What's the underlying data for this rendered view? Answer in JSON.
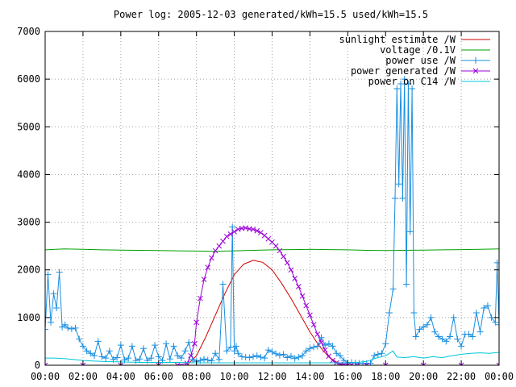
{
  "chart_data": {
    "type": "line",
    "title": "Power log: 2005-12-03 generated/kWh=15.5 used/kWh=15.5",
    "xlabel": "",
    "ylabel": "",
    "xlim": [
      0,
      24
    ],
    "ylim": [
      0,
      7000
    ],
    "x_ticks": [
      {
        "value": 0,
        "label": "00:00"
      },
      {
        "value": 2,
        "label": "02:00"
      },
      {
        "value": 4,
        "label": "04:00"
      },
      {
        "value": 6,
        "label": "06:00"
      },
      {
        "value": 8,
        "label": "08:00"
      },
      {
        "value": 10,
        "label": "10:00"
      },
      {
        "value": 12,
        "label": "12:00"
      },
      {
        "value": 14,
        "label": "14:00"
      },
      {
        "value": 16,
        "label": "16:00"
      },
      {
        "value": 18,
        "label": "18:00"
      },
      {
        "value": 20,
        "label": "20:00"
      },
      {
        "value": 22,
        "label": "22:00"
      },
      {
        "value": 24,
        "label": "00:00"
      }
    ],
    "y_ticks": [
      {
        "value": 0,
        "label": "0"
      },
      {
        "value": 1000,
        "label": "1000"
      },
      {
        "value": 2000,
        "label": "2000"
      },
      {
        "value": 3000,
        "label": "3000"
      },
      {
        "value": 4000,
        "label": "4000"
      },
      {
        "value": 5000,
        "label": "5000"
      },
      {
        "value": 6000,
        "label": "6000"
      },
      {
        "value": 7000,
        "label": "7000"
      }
    ],
    "grid": true,
    "legend_position": "top-right",
    "series": [
      {
        "name": "sunlight estimate /W",
        "color": "#d00000",
        "style": "line",
        "x": [
          7.5,
          8,
          8.5,
          9,
          9.5,
          10,
          10.5,
          11,
          11.5,
          12,
          12.5,
          13,
          13.5,
          14,
          14.5,
          15,
          15.5,
          16
        ],
        "y": [
          0,
          200,
          600,
          1050,
          1500,
          1900,
          2120,
          2200,
          2160,
          2000,
          1720,
          1400,
          1050,
          700,
          400,
          170,
          40,
          0
        ]
      },
      {
        "name": "voltage /0.1V",
        "color": "#00a000",
        "style": "line",
        "x": [
          0,
          1,
          2,
          3,
          4,
          5,
          6,
          7,
          8,
          9,
          10,
          11,
          12,
          13,
          14,
          15,
          16,
          17,
          18,
          19,
          20,
          21,
          22,
          23,
          24
        ],
        "y": [
          2420,
          2440,
          2430,
          2420,
          2415,
          2410,
          2405,
          2400,
          2395,
          2390,
          2400,
          2410,
          2420,
          2425,
          2430,
          2425,
          2420,
          2410,
          2405,
          2410,
          2415,
          2420,
          2425,
          2430,
          2440
        ]
      },
      {
        "name": "power use /W",
        "color": "#1a8fe0",
        "style": "linespoints",
        "x": [
          0,
          0.15,
          0.3,
          0.45,
          0.6,
          0.75,
          0.9,
          1.05,
          1.2,
          1.4,
          1.6,
          1.8,
          2.0,
          2.2,
          2.4,
          2.6,
          2.8,
          3.0,
          3.2,
          3.4,
          3.6,
          3.8,
          4.0,
          4.2,
          4.4,
          4.6,
          4.8,
          5.0,
          5.2,
          5.4,
          5.6,
          5.8,
          6.0,
          6.2,
          6.4,
          6.6,
          6.8,
          7.0,
          7.2,
          7.4,
          7.6,
          7.8,
          8.0,
          8.2,
          8.4,
          8.6,
          8.8,
          9.0,
          9.2,
          9.4,
          9.6,
          9.8,
          9.9,
          10.0,
          10.1,
          10.2,
          10.4,
          10.6,
          10.8,
          11.0,
          11.2,
          11.4,
          11.6,
          11.8,
          12.0,
          12.2,
          12.4,
          12.6,
          12.8,
          13.0,
          13.2,
          13.4,
          13.6,
          13.8,
          14.0,
          14.2,
          14.4,
          14.6,
          14.8,
          15.0,
          15.2,
          15.4,
          15.6,
          15.8,
          16.0,
          16.2,
          16.4,
          16.6,
          16.8,
          17.0,
          17.2,
          17.4,
          17.6,
          17.8,
          18.0,
          18.2,
          18.4,
          18.5,
          18.6,
          18.7,
          18.8,
          18.9,
          19.0,
          19.1,
          19.2,
          19.3,
          19.4,
          19.5,
          19.6,
          19.8,
          20.0,
          20.2,
          20.4,
          20.6,
          20.8,
          21.0,
          21.2,
          21.4,
          21.6,
          21.8,
          22.0,
          22.2,
          22.4,
          22.6,
          22.8,
          23.0,
          23.2,
          23.4,
          23.6,
          23.8,
          23.9,
          24.0
        ],
        "y": [
          750,
          1900,
          900,
          1500,
          1200,
          1950,
          800,
          850,
          780,
          760,
          780,
          550,
          400,
          300,
          250,
          200,
          500,
          180,
          150,
          300,
          120,
          160,
          420,
          110,
          150,
          400,
          100,
          130,
          350,
          100,
          150,
          420,
          180,
          100,
          450,
          130,
          400,
          200,
          150,
          300,
          480,
          120,
          80,
          100,
          130,
          110,
          90,
          250,
          120,
          1700,
          300,
          380,
          2900,
          300,
          400,
          250,
          180,
          170,
          160,
          180,
          200,
          170,
          150,
          320,
          280,
          240,
          210,
          230,
          160,
          190,
          140,
          170,
          200,
          300,
          350,
          380,
          400,
          580,
          420,
          450,
          400,
          250,
          200,
          100,
          50,
          60,
          50,
          40,
          40,
          40,
          40,
          200,
          230,
          250,
          450,
          1100,
          1600,
          3500,
          5800,
          3800,
          5900,
          3500,
          6000,
          1700,
          5900,
          2800,
          5800,
          1100,
          600,
          750,
          800,
          850,
          1000,
          700,
          600,
          550,
          500,
          600,
          1000,
          550,
          400,
          650,
          650,
          600,
          1100,
          700,
          1200,
          1250,
          1000,
          900,
          2150,
          850
        ]
      },
      {
        "name": "power generated /W",
        "color": "#9a00d8",
        "style": "linespoints",
        "x": [
          0,
          2,
          4,
          6,
          7,
          7.5,
          7.7,
          7.9,
          8.0,
          8.2,
          8.4,
          8.6,
          8.8,
          9.0,
          9.2,
          9.4,
          9.6,
          9.8,
          10.0,
          10.2,
          10.4,
          10.6,
          10.8,
          11.0,
          11.2,
          11.4,
          11.6,
          11.8,
          12.0,
          12.2,
          12.4,
          12.6,
          12.8,
          13.0,
          13.2,
          13.4,
          13.6,
          13.8,
          14.0,
          14.2,
          14.4,
          14.6,
          14.8,
          15.0,
          15.2,
          15.4,
          15.6,
          15.8,
          16.0,
          16.2,
          16.5,
          17,
          18,
          20,
          22,
          24
        ],
        "y": [
          0,
          0,
          0,
          0,
          0,
          40,
          200,
          450,
          900,
          1400,
          1800,
          2050,
          2250,
          2400,
          2500,
          2600,
          2700,
          2750,
          2800,
          2850,
          2870,
          2880,
          2860,
          2850,
          2820,
          2780,
          2720,
          2650,
          2580,
          2500,
          2400,
          2280,
          2150,
          2000,
          1820,
          1650,
          1450,
          1250,
          1050,
          850,
          650,
          480,
          320,
          190,
          100,
          50,
          20,
          10,
          0,
          0,
          0,
          0,
          0,
          0,
          0,
          0
        ]
      },
      {
        "name": "power on C14 /W",
        "color": "#00c8d8",
        "style": "line",
        "x": [
          0,
          0.5,
          1.0,
          1.5,
          2.0,
          2.5,
          3.0,
          4.0,
          5.0,
          6.0,
          7.0,
          8.0,
          9.0,
          10.0,
          11.0,
          12.0,
          13.0,
          14.0,
          15.0,
          16.0,
          16.5,
          17.0,
          17.5,
          18.0,
          18.4,
          18.6,
          19.0,
          19.5,
          20.0,
          20.5,
          21.0,
          21.5,
          22.0,
          22.5,
          23.0,
          23.5,
          24.0
        ],
        "y": [
          150,
          150,
          140,
          120,
          100,
          90,
          80,
          70,
          60,
          60,
          60,
          50,
          50,
          50,
          50,
          50,
          50,
          50,
          50,
          50,
          60,
          80,
          150,
          200,
          300,
          170,
          160,
          180,
          150,
          180,
          160,
          200,
          230,
          250,
          260,
          250,
          270
        ]
      }
    ]
  }
}
